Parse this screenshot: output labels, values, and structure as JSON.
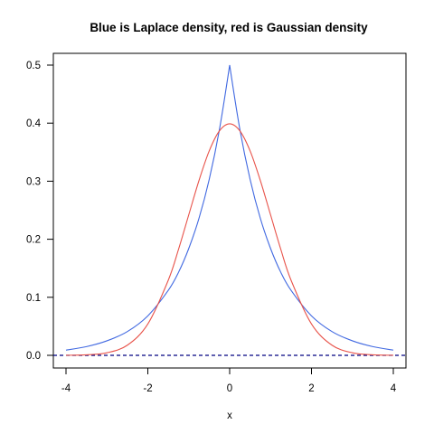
{
  "chart_data": {
    "type": "line",
    "title": "Blue is Laplace density, red is Gaussian density",
    "xlabel": "x",
    "ylabel": "",
    "xlim": [
      -4,
      4
    ],
    "ylim": [
      0,
      0.5
    ],
    "grid": false,
    "x_ticks": [
      -4,
      -2,
      0,
      2,
      4
    ],
    "x_tick_labels": [
      "-4",
      "-2",
      "0",
      "2",
      "4"
    ],
    "y_ticks": [
      0.0,
      0.1,
      0.2,
      0.3,
      0.4,
      0.5
    ],
    "y_tick_labels": [
      "0.0",
      "0.1",
      "0.2",
      "0.3",
      "0.4",
      "0.5"
    ],
    "x": [
      -4.0,
      -3.5,
      -3.0,
      -2.5,
      -2.0,
      -1.5,
      -1.25,
      -1.0,
      -0.75,
      -0.5,
      -0.25,
      0.0,
      0.25,
      0.5,
      0.75,
      1.0,
      1.25,
      1.5,
      2.0,
      2.5,
      3.0,
      3.5,
      4.0
    ],
    "series": [
      {
        "color": "#4169E1",
        "values": [
          0.009,
          0.015,
          0.025,
          0.041,
          0.068,
          0.112,
          0.143,
          0.184,
          0.236,
          0.303,
          0.389,
          0.5,
          0.389,
          0.303,
          0.236,
          0.184,
          0.143,
          0.112,
          0.068,
          0.041,
          0.025,
          0.015,
          0.009
        ]
      },
      {
        "color": "#E8534A",
        "values": [
          0.0001,
          0.0009,
          0.0044,
          0.0175,
          0.054,
          0.1295,
          0.1826,
          0.242,
          0.3011,
          0.3521,
          0.3867,
          0.3989,
          0.3867,
          0.3521,
          0.3011,
          0.242,
          0.1826,
          0.1295,
          0.054,
          0.0175,
          0.0044,
          0.0009,
          0.0001
        ]
      }
    ],
    "reference_line": {
      "y": 0,
      "style": "dashed",
      "color": "#000080"
    }
  }
}
